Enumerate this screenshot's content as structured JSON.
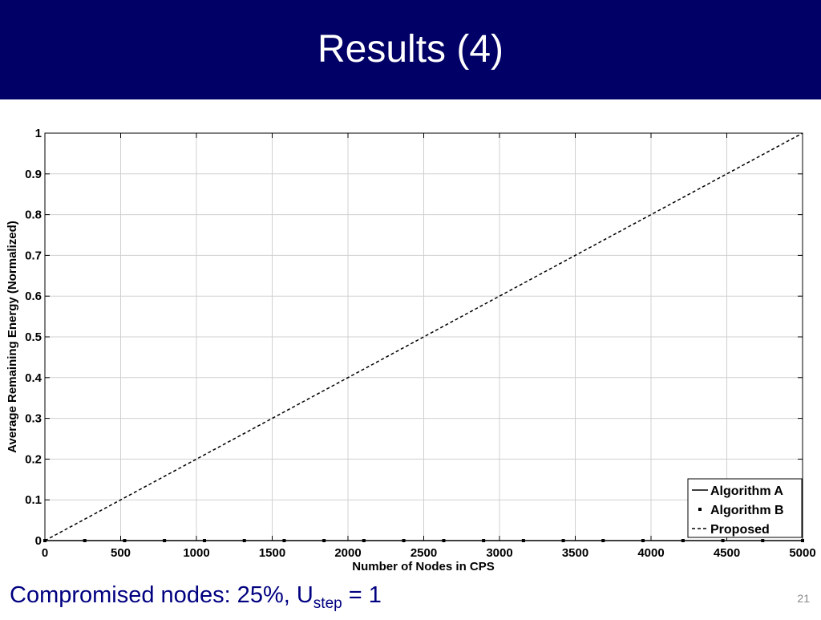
{
  "slide": {
    "title": "Results (4)",
    "header_color": "#000066",
    "caption_main": "Compromised nodes: 25%, U",
    "caption_sub": "step",
    "caption_end": " = 1",
    "caption_color": "#000080",
    "page_number": "21"
  },
  "chart_data": {
    "type": "line",
    "title": "",
    "xlabel": "Number of Nodes in CPS",
    "ylabel": "Average Remaining Energy (Normalized)",
    "xlim": [
      0,
      5000
    ],
    "ylim": [
      0,
      1
    ],
    "grid": true,
    "legend_position": "bottom-right",
    "x_ticks": [
      "0",
      "500",
      "1000",
      "1500",
      "2000",
      "2500",
      "3000",
      "3500",
      "4000",
      "4500",
      "5000"
    ],
    "y_ticks": [
      "0",
      "0.1",
      "0.2",
      "0.3",
      "0.4",
      "0.5",
      "0.6",
      "0.7",
      "0.8",
      "0.9",
      "1"
    ],
    "series": [
      {
        "name": "Algorithm A",
        "style": "solid",
        "color": "#000000",
        "x": [
          0,
          5000
        ],
        "y": [
          0,
          0
        ]
      },
      {
        "name": "Algorithm B",
        "style": "dotted-markers",
        "color": "#000000",
        "x": [
          0,
          263,
          526,
          789,
          1053,
          1316,
          1579,
          1842,
          2105,
          2368,
          2632,
          2895,
          3158,
          3421,
          3684,
          3947,
          4211,
          4474,
          4737,
          5000
        ],
        "y": [
          0,
          0,
          0,
          0,
          0,
          0,
          0,
          0,
          0,
          0,
          0,
          0,
          0,
          0,
          0,
          0,
          0,
          0,
          0,
          0
        ]
      },
      {
        "name": "Proposed",
        "style": "dashed",
        "color": "#000000",
        "x": [
          0,
          5000
        ],
        "y": [
          0,
          1
        ]
      }
    ]
  }
}
